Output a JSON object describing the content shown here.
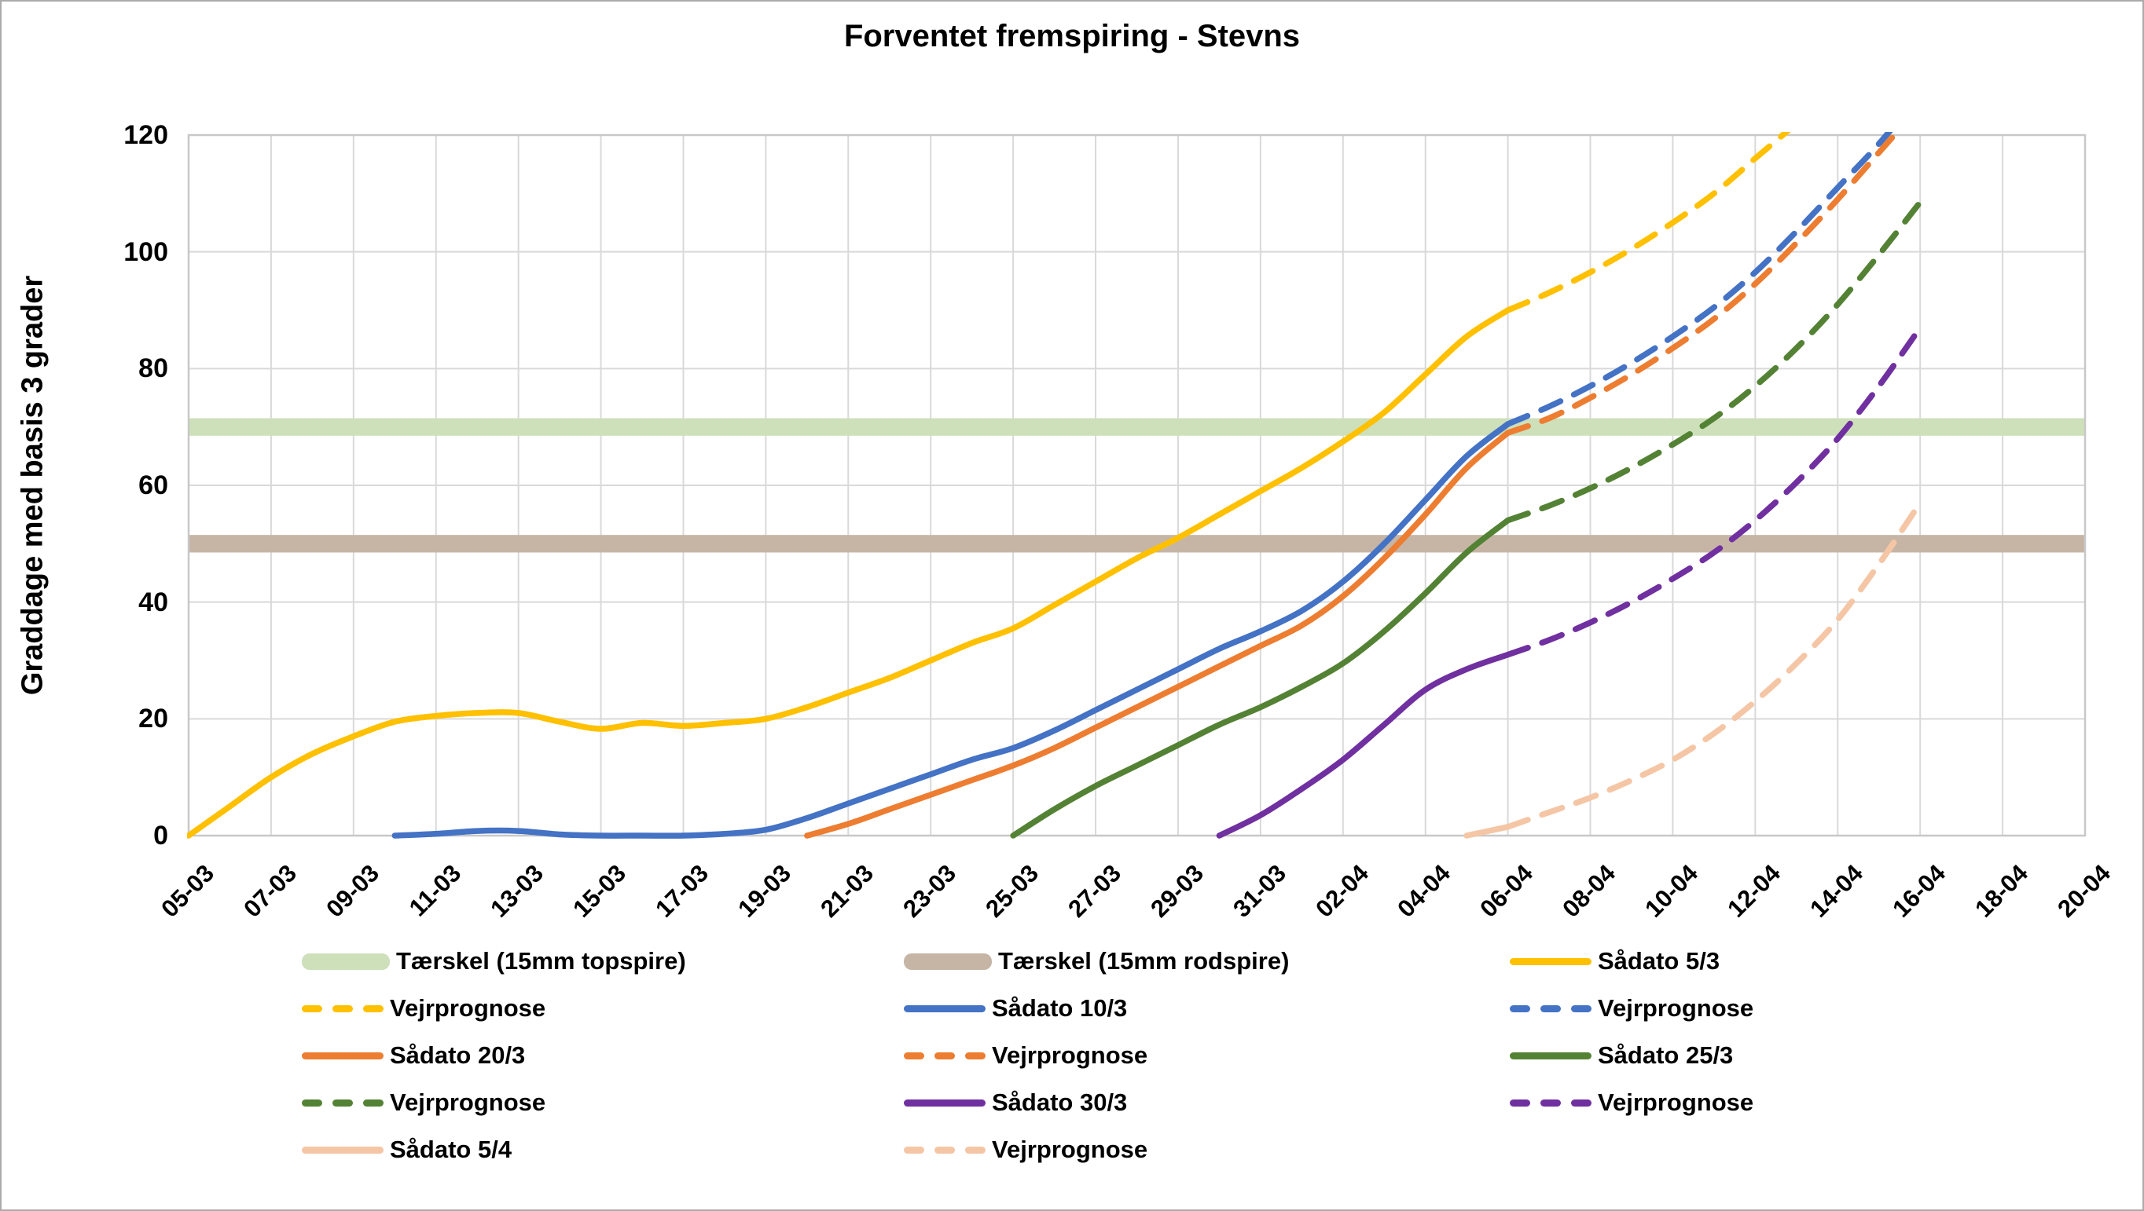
{
  "title": "Forventet fremspiring - Stevns",
  "y_axis": {
    "label": "Graddage med basis 3 grader",
    "min": 0,
    "max": 120,
    "tick_step": 20,
    "ticks": [
      0,
      20,
      40,
      60,
      80,
      100,
      120
    ]
  },
  "x_axis": {
    "tick_labels": [
      "05-03",
      "07-03",
      "09-03",
      "11-03",
      "13-03",
      "15-03",
      "17-03",
      "19-03",
      "21-03",
      "23-03",
      "25-03",
      "27-03",
      "29-03",
      "31-03",
      "02-04",
      "04-04",
      "06-04",
      "08-04",
      "10-04",
      "12-04",
      "14-04",
      "16-04",
      "18-04",
      "20-04"
    ]
  },
  "colors": {
    "yellow": "#FFC000",
    "blue": "#4472C4",
    "orange": "#ED7D31",
    "green": "#548235",
    "purple": "#7030A0",
    "pink": "#F5C6A5",
    "band_green": "#CDE0BA",
    "band_tan": "#C6B5A5",
    "grid": "#D9D9D9",
    "plot_border": "#C8C8C8",
    "frame_border": "#ABABAB",
    "text": "#000000"
  },
  "chart_data": {
    "type": "line",
    "title": "Forventet fremspiring - Stevns",
    "xlabel": "",
    "ylabel": "Graddage med basis 3 grader",
    "ylim": [
      0,
      120
    ],
    "grid": true,
    "legend_position": "bottom",
    "x_tick_labels": [
      "05-03",
      "07-03",
      "09-03",
      "11-03",
      "13-03",
      "15-03",
      "17-03",
      "19-03",
      "21-03",
      "23-03",
      "25-03",
      "27-03",
      "29-03",
      "31-03",
      "02-04",
      "04-04",
      "06-04",
      "08-04",
      "10-04",
      "12-04",
      "14-04",
      "16-04",
      "18-04",
      "20-04"
    ],
    "thresholds": [
      {
        "name": "Tærskel (15mm topspire)",
        "value": 70,
        "color": "#CDE0BA",
        "thickness_units": 3
      },
      {
        "name": "Tærskel (15mm rodspire)",
        "value": 50,
        "color": "#C6B5A5",
        "thickness_units": 3
      }
    ],
    "series": [
      {
        "name": "Sådato 5/3",
        "style": "solid",
        "color": "#FFC000",
        "x": [
          "05-03",
          "06-03",
          "07-03",
          "08-03",
          "09-03",
          "10-03",
          "11-03",
          "12-03",
          "13-03",
          "14-03",
          "15-03",
          "16-03",
          "17-03",
          "18-03",
          "19-03",
          "20-03",
          "21-03",
          "22-03",
          "23-03",
          "24-03",
          "25-03",
          "26-03",
          "27-03",
          "28-03",
          "29-03",
          "30-03",
          "31-03",
          "01-04",
          "02-04",
          "03-04",
          "04-04",
          "05-04",
          "06-04"
        ],
        "values": [
          0,
          5,
          10,
          14,
          17,
          19.5,
          20.5,
          21,
          21,
          19.5,
          18.3,
          19.3,
          18.8,
          19.3,
          20,
          22,
          24.5,
          27,
          30,
          33,
          35.5,
          39.5,
          43.5,
          47.5,
          51,
          55,
          59,
          63,
          67.5,
          72.5,
          79,
          85.5,
          90
        ]
      },
      {
        "name": "Vejrprognose (5/3)",
        "legend_label": "Vejrprognose",
        "style": "dashed",
        "color": "#FFC000",
        "x": [
          "06-04",
          "07-04",
          "08-04",
          "09-04",
          "10-04",
          "11-04",
          "12-04",
          "13-04"
        ],
        "values": [
          90,
          93,
          96.5,
          100.5,
          105,
          110,
          116,
          122
        ]
      },
      {
        "name": "Sådato 10/3",
        "style": "solid",
        "color": "#4472C4",
        "x": [
          "10-03",
          "11-03",
          "12-03",
          "13-03",
          "14-03",
          "15-03",
          "16-03",
          "17-03",
          "18-03",
          "19-03",
          "20-03",
          "21-03",
          "22-03",
          "23-03",
          "24-03",
          "25-03",
          "26-03",
          "27-03",
          "28-03",
          "29-03",
          "30-03",
          "31-03",
          "01-04",
          "02-04",
          "03-04",
          "04-04",
          "05-04",
          "06-04"
        ],
        "values": [
          0,
          0.3,
          0.8,
          0.8,
          0.2,
          0,
          0,
          0,
          0.3,
          1,
          3,
          5.5,
          8,
          10.5,
          13,
          15,
          18,
          21.5,
          25,
          28.5,
          32,
          35,
          38.5,
          43.5,
          50,
          57.5,
          65,
          70.5
        ]
      },
      {
        "name": "Vejrprognose (10/3)",
        "legend_label": "Vejrprognose",
        "style": "dashed",
        "color": "#4472C4",
        "x": [
          "06-04",
          "07-04",
          "08-04",
          "09-04",
          "10-04",
          "11-04",
          "12-04",
          "13-04",
          "14-04",
          "15-04",
          "16-04"
        ],
        "values": [
          70.5,
          73.5,
          77,
          81,
          85.5,
          90.5,
          96.5,
          103.5,
          111,
          118.5,
          127
        ]
      },
      {
        "name": "Sådato 20/3",
        "style": "solid",
        "color": "#ED7D31",
        "x": [
          "20-03",
          "21-03",
          "22-03",
          "23-03",
          "24-03",
          "25-03",
          "26-03",
          "27-03",
          "28-03",
          "29-03",
          "30-03",
          "31-03",
          "01-04",
          "02-04",
          "03-04",
          "04-04",
          "05-04",
          "06-04"
        ],
        "values": [
          0,
          2,
          4.5,
          7,
          9.5,
          12,
          15,
          18.5,
          22,
          25.5,
          29,
          32.5,
          36,
          41,
          47.5,
          55,
          63,
          69
        ]
      },
      {
        "name": "Vejrprognose (20/3)",
        "legend_label": "Vejrprognose",
        "style": "dashed",
        "color": "#ED7D31",
        "x": [
          "06-04",
          "07-04",
          "08-04",
          "09-04",
          "10-04",
          "11-04",
          "12-04",
          "13-04",
          "14-04",
          "15-04",
          "16-04"
        ],
        "values": [
          69,
          71.5,
          75,
          79,
          83.5,
          88.5,
          94.5,
          101.5,
          109,
          117,
          125
        ]
      },
      {
        "name": "Sådato 25/3",
        "style": "solid",
        "color": "#548235",
        "x": [
          "25-03",
          "26-03",
          "27-03",
          "28-03",
          "29-03",
          "30-03",
          "31-03",
          "01-04",
          "02-04",
          "03-04",
          "04-04",
          "05-04",
          "06-04"
        ],
        "values": [
          0,
          4.5,
          8.5,
          12,
          15.5,
          19,
          22,
          25.5,
          29.5,
          35,
          41.5,
          48.5,
          54
        ]
      },
      {
        "name": "Vejrprognose (25/3)",
        "legend_label": "Vejrprognose",
        "style": "dashed",
        "color": "#548235",
        "x": [
          "06-04",
          "07-04",
          "08-04",
          "09-04",
          "10-04",
          "11-04",
          "12-04",
          "13-04",
          "14-04",
          "15-04",
          "16-04"
        ],
        "values": [
          54,
          56.5,
          59.5,
          63,
          67,
          71.5,
          77,
          83.5,
          91,
          99.5,
          108.5
        ]
      },
      {
        "name": "Sådato 30/3",
        "style": "solid",
        "color": "#7030A0",
        "x": [
          "30-03",
          "31-03",
          "01-04",
          "02-04",
          "03-04",
          "04-04",
          "05-04",
          "06-04"
        ],
        "values": [
          0,
          3.5,
          8,
          13,
          19,
          25,
          28.5,
          31
        ]
      },
      {
        "name": "Vejrprognose (30/3)",
        "legend_label": "Vejrprognose",
        "style": "dashed",
        "color": "#7030A0",
        "x": [
          "06-04",
          "07-04",
          "08-04",
          "09-04",
          "10-04",
          "11-04",
          "12-04",
          "13-04",
          "14-04",
          "15-04",
          "16-04"
        ],
        "values": [
          31,
          33.5,
          36.5,
          40,
          44,
          48.5,
          54,
          60.5,
          68,
          77,
          87
        ]
      },
      {
        "name": "Sådato 5/4",
        "style": "solid",
        "color": "#F5C6A5",
        "x": [
          "05-04",
          "06-04"
        ],
        "values": [
          0,
          1.5
        ]
      },
      {
        "name": "Vejrprognose (5/4)",
        "legend_label": "Vejrprognose",
        "style": "dashed",
        "color": "#F5C6A5",
        "x": [
          "06-04",
          "07-04",
          "08-04",
          "09-04",
          "10-04",
          "11-04",
          "12-04",
          "13-04",
          "14-04",
          "15-04",
          "16-04"
        ],
        "values": [
          1.5,
          4,
          6.5,
          9.5,
          13,
          17.5,
          23,
          29.5,
          37,
          46.5,
          57
        ]
      }
    ],
    "legend": [
      {
        "label": "Tærskel (15mm topspire)",
        "swatch": "band",
        "color": "#CDE0BA"
      },
      {
        "label": "Tærskel (15mm rodspire)",
        "swatch": "band",
        "color": "#C6B5A5"
      },
      {
        "label": "Sådato 5/3",
        "swatch": "solid",
        "color": "#FFC000"
      },
      {
        "label": "Vejrprognose",
        "swatch": "dashed",
        "color": "#FFC000"
      },
      {
        "label": "Sådato 10/3",
        "swatch": "solid",
        "color": "#4472C4"
      },
      {
        "label": "Vejrprognose",
        "swatch": "dashed",
        "color": "#4472C4"
      },
      {
        "label": "Sådato 20/3",
        "swatch": "solid",
        "color": "#ED7D31"
      },
      {
        "label": "Vejrprognose",
        "swatch": "dashed",
        "color": "#ED7D31"
      },
      {
        "label": "Sådato 25/3",
        "swatch": "solid",
        "color": "#548235"
      },
      {
        "label": "Vejrprognose",
        "swatch": "dashed",
        "color": "#548235"
      },
      {
        "label": "Sådato 30/3",
        "swatch": "solid",
        "color": "#7030A0"
      },
      {
        "label": "Vejrprognose",
        "swatch": "dashed",
        "color": "#7030A0"
      },
      {
        "label": "Sådato 5/4",
        "swatch": "solid",
        "color": "#F5C6A5"
      },
      {
        "label": "Vejrprognose",
        "swatch": "dashed",
        "color": "#F5C6A5"
      }
    ]
  }
}
